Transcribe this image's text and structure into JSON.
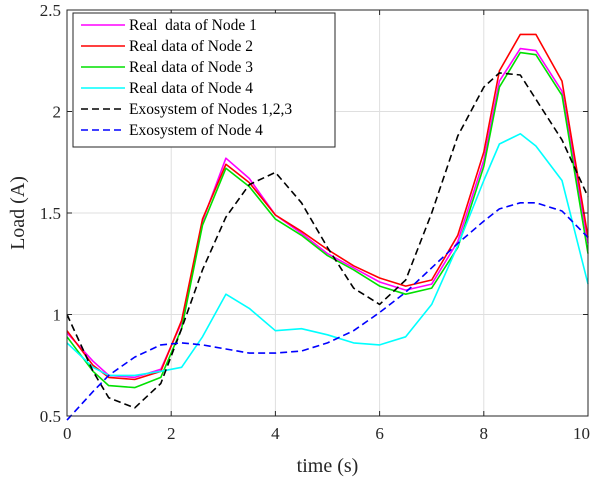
{
  "chart_data": {
    "type": "line",
    "xlabel": "time (s)",
    "ylabel": "Load (A)",
    "xlim": [
      0,
      10
    ],
    "ylim": [
      0.5,
      2.5
    ],
    "xticks": [
      0,
      2,
      4,
      6,
      8,
      10
    ],
    "yticks": [
      0.5,
      1,
      1.5,
      2,
      2.5
    ],
    "ytick_labels": [
      "0.5",
      "1",
      "1.5",
      "2",
      "2.5"
    ],
    "grid": true,
    "legend_position": "top-left",
    "series": [
      {
        "name": "Real  data of Node 1",
        "color": "#ff00ff",
        "style": "solid",
        "x": [
          0,
          0.5,
          0.8,
          1.3,
          1.8,
          2.2,
          2.6,
          3.05,
          3.5,
          4.0,
          4.5,
          5.0,
          5.5,
          6.0,
          6.5,
          7.0,
          7.5,
          8.0,
          8.3,
          8.7,
          9.0,
          9.5,
          10
        ],
        "y": [
          0.91,
          0.77,
          0.7,
          0.69,
          0.73,
          0.96,
          1.46,
          1.77,
          1.67,
          1.49,
          1.4,
          1.3,
          1.23,
          1.16,
          1.12,
          1.15,
          1.36,
          1.76,
          2.15,
          2.31,
          2.3,
          2.1,
          1.35
        ]
      },
      {
        "name": "Real data of Node 2",
        "color": "#ff0000",
        "style": "solid",
        "x": [
          0,
          0.5,
          0.8,
          1.3,
          1.8,
          2.2,
          2.6,
          3.05,
          3.5,
          4.0,
          4.5,
          5.0,
          5.5,
          6.0,
          6.5,
          7.0,
          7.5,
          8.0,
          8.3,
          8.7,
          9.0,
          9.5,
          10
        ],
        "y": [
          0.92,
          0.75,
          0.69,
          0.68,
          0.72,
          0.97,
          1.47,
          1.74,
          1.65,
          1.49,
          1.41,
          1.32,
          1.24,
          1.18,
          1.14,
          1.17,
          1.39,
          1.8,
          2.2,
          2.38,
          2.38,
          2.15,
          1.38
        ]
      },
      {
        "name": "Real data of Node 3",
        "color": "#00e000",
        "style": "solid",
        "x": [
          0,
          0.5,
          0.8,
          1.3,
          1.8,
          2.2,
          2.6,
          3.05,
          3.5,
          4.0,
          4.5,
          5.0,
          5.5,
          6.0,
          6.5,
          7.0,
          7.5,
          8.0,
          8.3,
          8.7,
          9.0,
          9.5,
          10
        ],
        "y": [
          0.89,
          0.72,
          0.65,
          0.64,
          0.69,
          0.93,
          1.44,
          1.72,
          1.63,
          1.47,
          1.39,
          1.29,
          1.22,
          1.14,
          1.1,
          1.13,
          1.33,
          1.73,
          2.12,
          2.29,
          2.28,
          2.08,
          1.3
        ]
      },
      {
        "name": "Real data of Node 4",
        "color": "#00ffff",
        "style": "solid",
        "x": [
          0,
          0.5,
          0.8,
          1.3,
          1.8,
          2.2,
          2.6,
          3.05,
          3.5,
          4.0,
          4.5,
          5.0,
          5.5,
          6.0,
          6.5,
          7.0,
          7.5,
          8.0,
          8.3,
          8.7,
          9.0,
          9.5,
          10
        ],
        "y": [
          0.86,
          0.74,
          0.7,
          0.7,
          0.72,
          0.74,
          0.89,
          1.1,
          1.03,
          0.92,
          0.93,
          0.9,
          0.86,
          0.85,
          0.89,
          1.05,
          1.34,
          1.66,
          1.84,
          1.89,
          1.83,
          1.66,
          1.15
        ]
      },
      {
        "name": "Exosystem of Nodes 1,2,3",
        "color": "#000000",
        "style": "dashed",
        "x": [
          0,
          0.5,
          0.8,
          1.3,
          1.8,
          2.2,
          2.6,
          3.05,
          3.5,
          4.0,
          4.5,
          5.0,
          5.5,
          6.0,
          6.5,
          7.0,
          7.5,
          8.0,
          8.3,
          8.7,
          9.0,
          9.5,
          10
        ],
        "y": [
          1.0,
          0.72,
          0.59,
          0.54,
          0.66,
          0.93,
          1.22,
          1.48,
          1.64,
          1.7,
          1.55,
          1.33,
          1.13,
          1.05,
          1.17,
          1.5,
          1.88,
          2.12,
          2.19,
          2.18,
          2.06,
          1.86,
          1.58
        ]
      },
      {
        "name": "Exosystem of Node 4",
        "color": "#0000ff",
        "style": "dashed",
        "x": [
          0,
          0.5,
          0.8,
          1.3,
          1.8,
          2.2,
          2.6,
          3.05,
          3.5,
          4.0,
          4.5,
          5.0,
          5.5,
          6.0,
          6.5,
          7.0,
          7.5,
          8.0,
          8.3,
          8.7,
          9.0,
          9.5,
          10
        ],
        "y": [
          0.48,
          0.62,
          0.7,
          0.79,
          0.85,
          0.86,
          0.85,
          0.83,
          0.81,
          0.81,
          0.82,
          0.86,
          0.92,
          1.01,
          1.11,
          1.23,
          1.35,
          1.46,
          1.52,
          1.55,
          1.55,
          1.51,
          1.38
        ]
      }
    ]
  }
}
